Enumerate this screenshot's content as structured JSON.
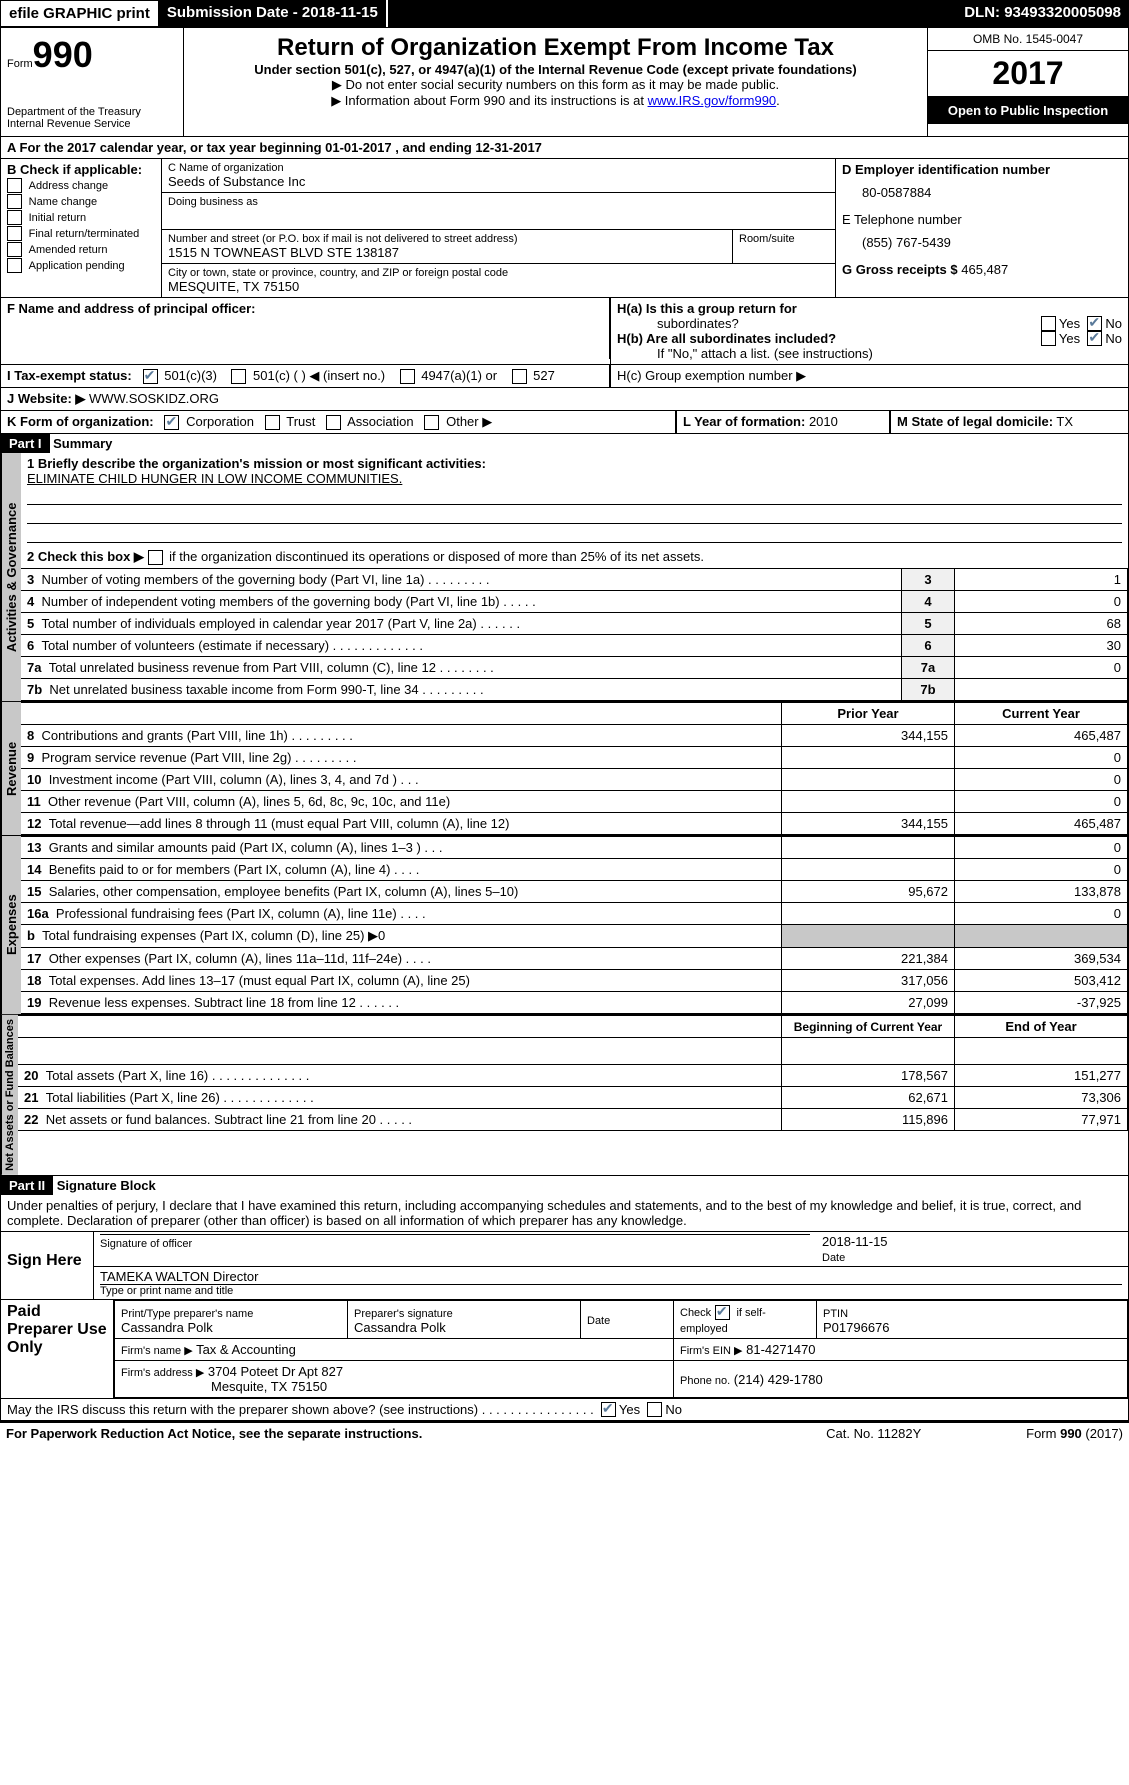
{
  "topbar": {
    "efile": "efile GRAPHIC print",
    "sub": "Submission Date - 2018-11-15",
    "dln": "DLN: 93493320005098"
  },
  "header": {
    "form_prefix": "Form",
    "form_no": "990",
    "dept1": "Department of the Treasury",
    "dept2": "Internal Revenue Service",
    "title": "Return of Organization Exempt From Income Tax",
    "sub": "Under section 501(c), 527, or 4947(a)(1) of the Internal Revenue Code (except private foundations)",
    "note1": "▶ Do not enter social security numbers on this form as it may be made public.",
    "note2": "▶ Information about Form 990 and its instructions is at ",
    "note2_link": "www.IRS.gov/form990",
    "note2_end": ".",
    "omb": "OMB No. 1545-0047",
    "year": "2017",
    "public": "Open to Public Inspection"
  },
  "sectA": "A  For the 2017 calendar year, or tax year beginning 01-01-2017    , and ending 12-31-2017",
  "B": {
    "head": "B Check if applicable:",
    "items": [
      "Address change",
      "Name change",
      "Initial return",
      "Final return/terminated",
      "Amended return",
      "Application pending"
    ]
  },
  "C": {
    "name_lbl": "C Name of organization",
    "name": "Seeds of Substance Inc",
    "dba_lbl": "Doing business as",
    "addr_lbl": "Number and street (or P.O. box if mail is not delivered to street address)",
    "room_lbl": "Room/suite",
    "addr": "1515 N TOWNEAST BLVD STE 138187",
    "city_lbl": "City or town, state or province, country, and ZIP or foreign postal code",
    "city": "MESQUITE, TX  75150"
  },
  "D": {
    "lbl": "D Employer identification number",
    "val": "80-0587884"
  },
  "E": {
    "lbl": "E Telephone number",
    "val": "(855) 767-5439"
  },
  "G": {
    "lbl": "G Gross receipts $",
    "val": "465,487"
  },
  "F": "F  Name and address of principal officer:",
  "H": {
    "a": "H(a)  Is this a group return for",
    "a2": "subordinates?",
    "b": "H(b)  Are all subordinates included?",
    "bnote": "If \"No,\" attach a list. (see instructions)",
    "c": "H(c)  Group exemption number ▶",
    "yes": "Yes",
    "no": "No"
  },
  "I": {
    "lbl": "I  Tax-exempt status:",
    "o1": "501(c)(3)",
    "o2": "501(c) (   ) ◀ (insert no.)",
    "o3": "4947(a)(1) or",
    "o4": "527"
  },
  "J": {
    "lbl": "J  Website: ▶",
    "val": "WWW.SOSKIDZ.ORG"
  },
  "K": {
    "lbl": "K Form of organization:",
    "o1": "Corporation",
    "o2": "Trust",
    "o3": "Association",
    "o4": "Other ▶"
  },
  "L": {
    "lbl": "L Year of formation:",
    "val": "2010"
  },
  "M": {
    "lbl": "M State of legal domicile:",
    "val": "TX"
  },
  "part1": {
    "hdr": "Part I",
    "title": "Summary",
    "tab1": "Activities & Governance",
    "tab2": "Revenue",
    "tab3": "Expenses",
    "tab4": "Net Assets or Fund Balances",
    "l1": "1  Briefly describe the organization's mission or most significant activities:",
    "l1v": "ELIMINATE CHILD HUNGER IN LOW INCOME COMMUNITIES.",
    "l2": "2   Check this box ▶",
    "l2b": "if the organization discontinued its operations or disposed of more than 25% of its net assets.",
    "rows_gov": [
      {
        "n": "3",
        "t": "Number of voting members of the governing body (Part VI, line 1a)   .    .    .    .    .    .    .    .    .",
        "v": "1"
      },
      {
        "n": "4",
        "t": "Number of independent voting members of the governing body (Part VI, line 1b)    .    .    .    .    .",
        "v": "0"
      },
      {
        "n": "5",
        "t": "Total number of individuals employed in calendar year 2017 (Part V, line 2a)    .    .    .    .    .    .",
        "v": "68"
      },
      {
        "n": "6",
        "t": "Total number of volunteers (estimate if necessary)   .    .    .    .    .    .    .    .    .    .    .    .    .",
        "v": "30"
      },
      {
        "n": "7a",
        "t": "Total unrelated business revenue from Part VIII, column (C), line 12    .    .    .    .    .    .    .    .",
        "v": "0"
      },
      {
        "n": "7b",
        "t": "Net unrelated business taxable income from Form 990-T, line 34   .    .    .    .    .    .    .    .    .",
        "v": ""
      }
    ],
    "py": "Prior Year",
    "cy": "Current Year",
    "rows_rev": [
      {
        "n": "8",
        "t": "Contributions and grants (Part VIII, line 1h)    .    .    .    .    .    .    .    .    .",
        "p": "344,155",
        "c": "465,487"
      },
      {
        "n": "9",
        "t": "Program service revenue (Part VIII, line 2g)    .    .    .    .    .    .    .    .    .",
        "p": "",
        "c": "0"
      },
      {
        "n": "10",
        "t": "Investment income (Part VIII, column (A), lines 3, 4, and 7d )    .    .    .",
        "p": "",
        "c": "0"
      },
      {
        "n": "11",
        "t": "Other revenue (Part VIII, column (A), lines 5, 6d, 8c, 9c, 10c, and 11e)",
        "p": "",
        "c": "0"
      },
      {
        "n": "12",
        "t": "Total revenue—add lines 8 through 11 (must equal Part VIII, column (A), line 12)",
        "p": "344,155",
        "c": "465,487"
      }
    ],
    "rows_exp": [
      {
        "n": "13",
        "t": "Grants and similar amounts paid (Part IX, column (A), lines 1–3 )   .    .    .",
        "p": "",
        "c": "0"
      },
      {
        "n": "14",
        "t": "Benefits paid to or for members (Part IX, column (A), line 4)   .    .    .    .",
        "p": "",
        "c": "0"
      },
      {
        "n": "15",
        "t": "Salaries, other compensation, employee benefits (Part IX, column (A), lines 5–10)",
        "p": "95,672",
        "c": "133,878"
      },
      {
        "n": "16a",
        "t": "Professional fundraising fees (Part IX, column (A), line 11e)    .    .    .    .",
        "p": "",
        "c": "0"
      },
      {
        "n": "b",
        "t": "Total fundraising expenses (Part IX, column (D), line 25) ▶0",
        "p": "GRAY",
        "c": "GRAY"
      },
      {
        "n": "17",
        "t": "Other expenses (Part IX, column (A), lines 11a–11d, 11f–24e)    .    .    .    .",
        "p": "221,384",
        "c": "369,534"
      },
      {
        "n": "18",
        "t": "Total expenses. Add lines 13–17 (must equal Part IX, column (A), line 25)",
        "p": "317,056",
        "c": "503,412"
      },
      {
        "n": "19",
        "t": "Revenue less expenses. Subtract line 18 from line 12    .    .    .    .    .    .",
        "p": "27,099",
        "c": "-37,925"
      }
    ],
    "by": "Beginning of Current Year",
    "ey": "End of Year",
    "rows_net": [
      {
        "n": "20",
        "t": "Total assets (Part X, line 16)   .    .    .    .    .    .    .    .    .    .    .    .    .    .",
        "p": "178,567",
        "c": "151,277"
      },
      {
        "n": "21",
        "t": "Total liabilities (Part X, line 26)   .    .    .    .    .    .    .    .    .    .    .    .    .",
        "p": "62,671",
        "c": "73,306"
      },
      {
        "n": "22",
        "t": "Net assets or fund balances. Subtract line 21 from line 20  .    .    .    .    .",
        "p": "115,896",
        "c": "77,971"
      }
    ]
  },
  "part2": {
    "hdr": "Part II",
    "title": "Signature Block",
    "decl": "Under penalties of perjury, I declare that I have examined this return, including accompanying schedules and statements, and to the best of my knowledge and belief, it is true, correct, and complete. Declaration of preparer (other than officer) is based on all information of which preparer has any knowledge.",
    "sign": "Sign Here",
    "sig_lbl": "Signature of officer",
    "date_lbl": "Date",
    "date": "2018-11-15",
    "name": "TAMEKA WALTON Director",
    "name_lbl": "Type or print name and title",
    "paid": "Paid Preparer Use Only",
    "prep_lbl": "Print/Type preparer's name",
    "prep": "Cassandra Polk",
    "prepsig_lbl": "Preparer's signature",
    "prepsig": "Cassandra Polk",
    "pdate": "Date",
    "self": "Check",
    "self2": "if self-employed",
    "ptin_lbl": "PTIN",
    "ptin": "P01796676",
    "firm_lbl": "Firm's name     ▶",
    "firm": "Tax & Accounting",
    "ein_lbl": "Firm's EIN ▶",
    "ein": "81-4271470",
    "faddr_lbl": "Firm's address ▶",
    "faddr1": "3704 Poteet Dr Apt 827",
    "faddr2": "Mesquite, TX  75150",
    "phone_lbl": "Phone no.",
    "phone": "(214) 429-1780",
    "discuss": "May the IRS discuss this return with the preparer shown above? (see instructions)    .    .    .    .    .    .    .    .    .    .    .    .    .    .    .    .",
    "yes": "Yes",
    "no": "No"
  },
  "footer": {
    "l": "For Paperwork Reduction Act Notice, see the separate instructions.",
    "c": "Cat. No. 11282Y",
    "r": "Form 990 (2017)"
  }
}
